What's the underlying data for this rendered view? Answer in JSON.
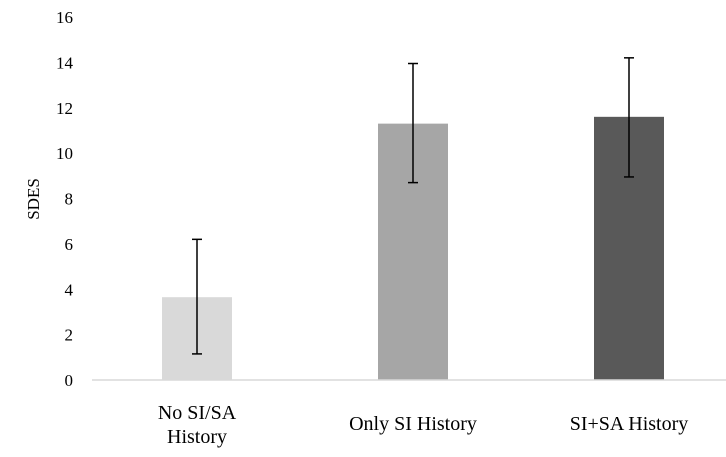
{
  "chart_data": {
    "type": "bar",
    "title": "",
    "xlabel": "",
    "ylabel": "SDES",
    "ylim": [
      0,
      16
    ],
    "yticks": [
      0,
      2,
      4,
      6,
      8,
      10,
      12,
      14,
      16
    ],
    "grid": false,
    "categories": [
      [
        "No SI/SA",
        "History"
      ],
      [
        "Only SI History"
      ],
      [
        "SI+SA History"
      ]
    ],
    "values": [
      3.65,
      11.3,
      11.6
    ],
    "error_bars": [
      {
        "low": 1.15,
        "high": 6.2
      },
      {
        "low": 8.7,
        "high": 13.95
      },
      {
        "low": 8.95,
        "high": 14.2
      }
    ],
    "colors": [
      "#d9d9d9",
      "#a6a6a6",
      "#595959"
    ]
  }
}
